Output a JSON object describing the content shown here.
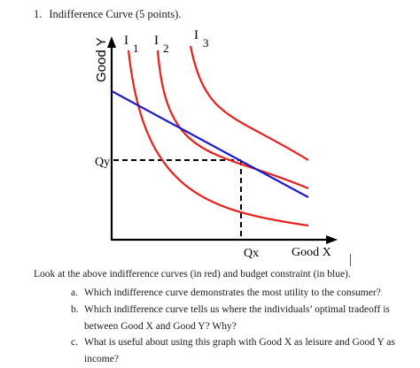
{
  "heading": {
    "number": "1.",
    "title": "Indifference Curve (5 points)."
  },
  "graph": {
    "y_axis_label": "Good Y",
    "x_axis_label": "Good X",
    "x_tick_label": "Qx",
    "y_tick_label": "Qy",
    "curve_labels": [
      {
        "letter": "I",
        "index": "1"
      },
      {
        "letter": "I",
        "index": "2"
      },
      {
        "letter": "I",
        "index": "3"
      }
    ],
    "colors": {
      "indifference_curves": "#e8201c",
      "budget_constraint": "#1a1acc",
      "axes": "#000000"
    }
  },
  "intro": "Look at the above indifference curves (in red) and budget constraint (in blue).",
  "questions": [
    {
      "letter": "a.",
      "text": "Which indifference curve demonstrates the most utility to the consumer?"
    },
    {
      "letter": "b.",
      "text": "Which indifference curve tells us where the individuals’ optimal tradeoff is between Good X and Good Y? Why?"
    },
    {
      "letter": "c.",
      "text": "What is useful about using this graph with Good X as leisure and Good Y as income?"
    }
  ]
}
